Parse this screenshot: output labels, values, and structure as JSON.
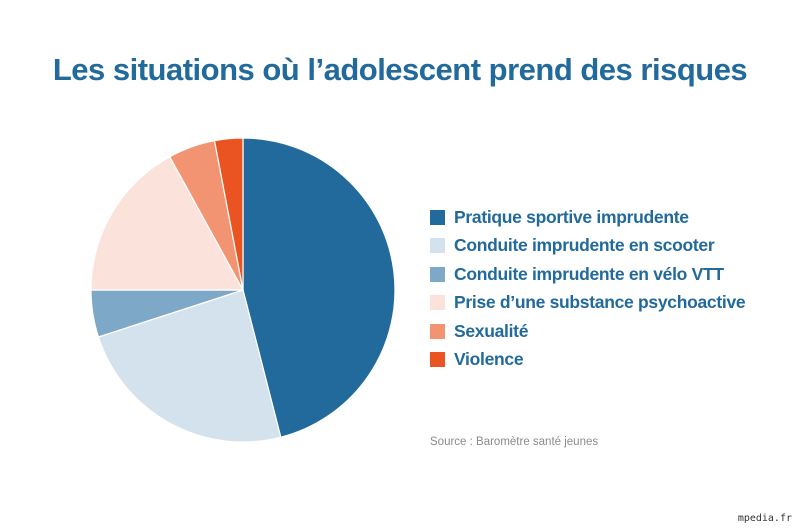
{
  "chart_data": {
    "type": "pie",
    "title": "Les situations où l’adolescent prend des risques",
    "legend_placement": "right",
    "slices": [
      {
        "label": "Pratique sportive imprudente",
        "value": 46,
        "color": "#216a9b"
      },
      {
        "label": "Conduite imprudente en scooter",
        "value": 24,
        "color": "#d4e2ed"
      },
      {
        "label": "Conduite imprudente en vélo VTT",
        "value": 5,
        "color": "#7da8c8"
      },
      {
        "label": "Prise d’une substance psychoactive",
        "value": 17,
        "color": "#fbe3dc"
      },
      {
        "label": "Sexualité",
        "value": 5,
        "color": "#f29472"
      },
      {
        "label": "Violence",
        "value": 3,
        "color": "#ea5422"
      }
    ],
    "source": "Source : Baromètre santé jeunes"
  },
  "watermark": "mpedia.fr"
}
